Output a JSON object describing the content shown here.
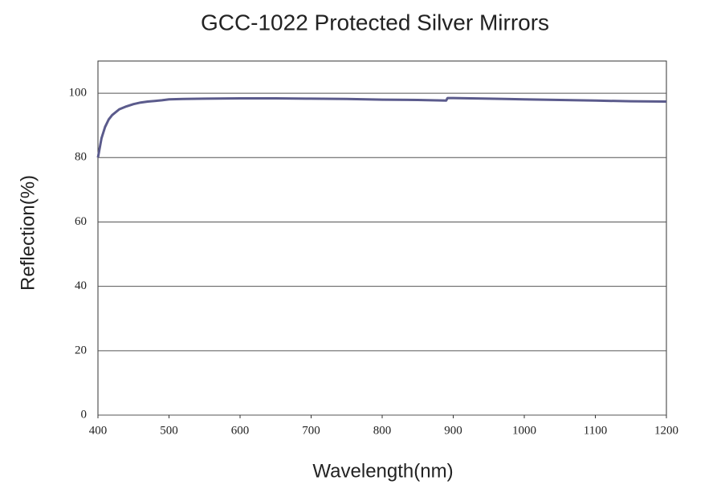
{
  "chart_data": {
    "type": "line",
    "title": "GCC-1022   Protected Silver Mirrors",
    "x_label": "Wavelength(nm)",
    "y_label": "Reflection(%)",
    "x": [
      400,
      405,
      410,
      415,
      420,
      430,
      440,
      450,
      460,
      470,
      480,
      490,
      500,
      520,
      550,
      600,
      650,
      700,
      750,
      800,
      850,
      890,
      892,
      900,
      950,
      1000,
      1050,
      1100,
      1150,
      1200
    ],
    "values": [
      80,
      86,
      89.5,
      91.8,
      93.2,
      95,
      95.9,
      96.6,
      97.1,
      97.4,
      97.6,
      97.8,
      98.1,
      98.2,
      98.3,
      98.4,
      98.4,
      98.3,
      98.2,
      98.0,
      97.9,
      97.7,
      98.5,
      98.5,
      98.3,
      98.1,
      97.9,
      97.7,
      97.5,
      97.4
    ],
    "color": "#5b5b8c",
    "xlim": [
      400,
      1200
    ],
    "ylim": [
      0,
      110
    ],
    "xticks": [
      400,
      500,
      600,
      700,
      800,
      900,
      1000,
      1100,
      1200
    ],
    "yticks": [
      0,
      20,
      40,
      60,
      80,
      100
    ],
    "grid": true
  }
}
